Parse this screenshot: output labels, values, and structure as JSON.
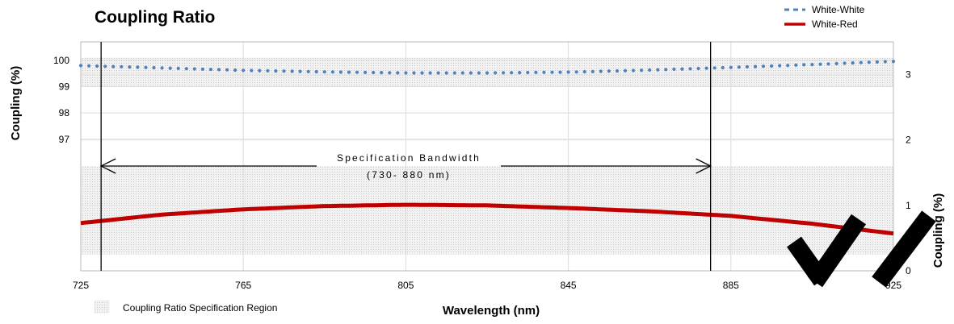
{
  "chart_data": {
    "type": "line",
    "title": "Coupling Ratio",
    "xlabel": "Wavelength (nm)",
    "ylabel_left": "Coupling  (%)",
    "ylabel_right": "Coupling  (%)",
    "x_ticks": [
      "725",
      "765",
      "805",
      "845",
      "885",
      "925"
    ],
    "y_left_ticks": [
      "100",
      "99",
      "98",
      "97"
    ],
    "y_right_ticks": [
      "3",
      "2",
      "1",
      "0"
    ],
    "xlim": [
      725,
      925
    ],
    "ylim_left": [
      92.0,
      100.7
    ],
    "ylim_right": [
      0,
      3.5
    ],
    "grid": true,
    "legend_position": "top-right",
    "series": [
      {
        "name": "White-White",
        "axis": "left",
        "style": "dotted",
        "color": "#4F81BD",
        "x": [
          725,
          745,
          765,
          785,
          805,
          825,
          845,
          865,
          885,
          905,
          925
        ],
        "values": [
          99.8,
          99.71,
          99.62,
          99.56,
          99.52,
          99.52,
          99.55,
          99.63,
          99.73,
          99.84,
          99.96
        ]
      },
      {
        "name": "White-Red",
        "axis": "right",
        "style": "solid",
        "color": "#C00000",
        "x": [
          725,
          745,
          765,
          785,
          805,
          825,
          845,
          865,
          885,
          905,
          925
        ],
        "values": [
          0.73,
          0.86,
          0.94,
          0.99,
          1.01,
          1.0,
          0.96,
          0.91,
          0.84,
          0.72,
          0.57
        ]
      }
    ],
    "spec_regions": [
      {
        "axis": "left",
        "range": [
          99.0,
          100.1
        ]
      },
      {
        "axis": "right",
        "range": [
          0.25,
          1.6
        ]
      }
    ],
    "spec_region_label": "Coupling Ratio Specification Region",
    "spec_bandwidth": {
      "x_range": [
        730,
        880
      ],
      "label_line1": "Specification Bandwidth",
      "label_line2": "(730- 880 nm)"
    }
  }
}
